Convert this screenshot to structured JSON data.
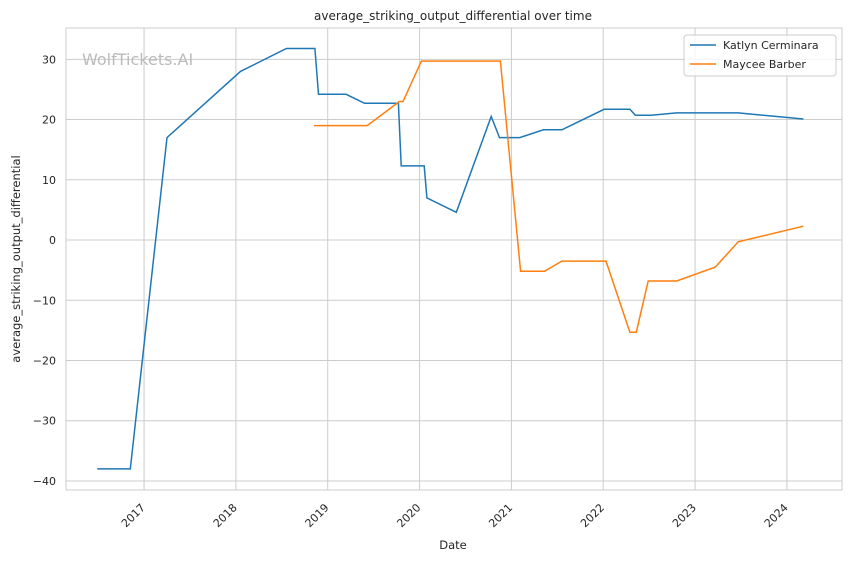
{
  "chart_data": {
    "type": "line",
    "title": "average_striking_output_differential over time",
    "xlabel": "Date",
    "ylabel": "average_striking_output_differential",
    "watermark": "WolfTickets.AI",
    "xlim": [
      2016.15,
      2024.6
    ],
    "ylim": [
      -41.5,
      35.2
    ],
    "xticks": [
      2017,
      2018,
      2019,
      2020,
      2021,
      2022,
      2023,
      2024
    ],
    "xtick_labels": [
      "2017",
      "2018",
      "2019",
      "2020",
      "2021",
      "2022",
      "2023",
      "2024"
    ],
    "yticks": [
      -40,
      -30,
      -20,
      -10,
      0,
      10,
      20,
      30
    ],
    "ytick_labels": [
      "−40",
      "−30",
      "−20",
      "−10",
      "0",
      "10",
      "20",
      "30"
    ],
    "grid": true,
    "legend": "top-right",
    "series": [
      {
        "name": "Katlyn Cerminara",
        "color": "#1f77b4",
        "x": [
          2016.49,
          2016.85,
          2017.25,
          2018.05,
          2018.55,
          2018.86,
          2018.9,
          2019.2,
          2019.4,
          2019.77,
          2019.8,
          2020.05,
          2020.08,
          2020.4,
          2020.78,
          2020.87,
          2021.09,
          2021.35,
          2021.55,
          2022.01,
          2022.29,
          2022.35,
          2022.52,
          2022.8,
          2023.47,
          2024.18
        ],
        "y": [
          -38,
          -38,
          17,
          28,
          31.8,
          31.8,
          24.2,
          24.2,
          22.7,
          22.7,
          12.3,
          12.3,
          7,
          4.6,
          20.5,
          17,
          17,
          18.3,
          18.3,
          21.7,
          21.7,
          20.7,
          20.7,
          21.1,
          21.1,
          20.1
        ]
      },
      {
        "name": "Maycee Barber",
        "color": "#ff7f0e",
        "x": [
          2018.85,
          2019.43,
          2019.78,
          2019.82,
          2020.02,
          2020.88,
          2021.1,
          2021.36,
          2021.55,
          2022.03,
          2022.29,
          2022.36,
          2022.49,
          2022.8,
          2023.22,
          2023.47,
          2024.18
        ],
        "y": [
          19,
          19,
          23,
          23,
          29.7,
          29.7,
          -5.2,
          -5.2,
          -3.5,
          -3.5,
          -15.3,
          -15.3,
          -6.8,
          -6.8,
          -4.5,
          -0.3,
          2.3
        ]
      }
    ]
  }
}
